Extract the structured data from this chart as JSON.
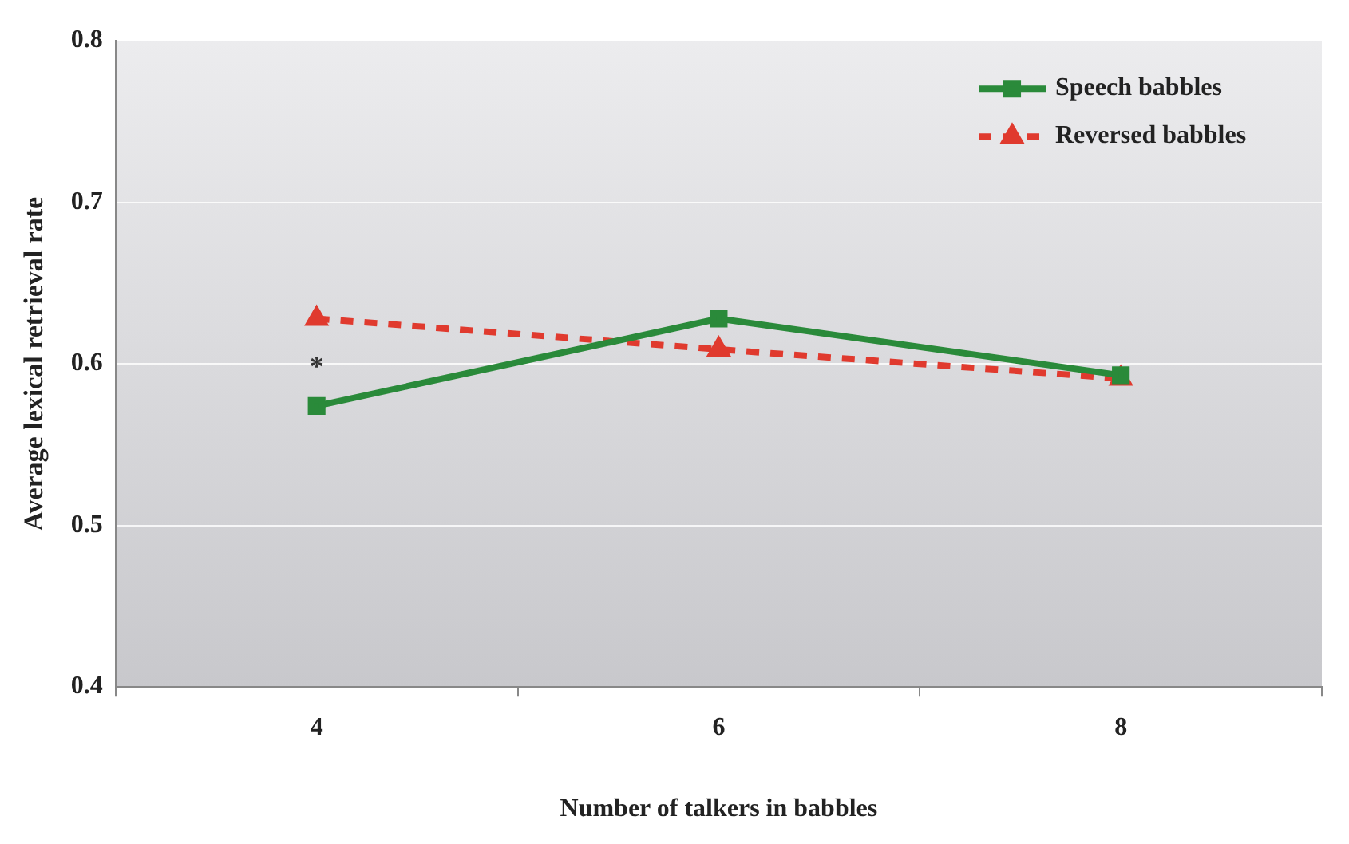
{
  "chart_data": {
    "type": "line",
    "xlabel": "Number of talkers in babbles",
    "ylabel": "Average lexical retrieval rate",
    "categories": [
      "4",
      "6",
      "8"
    ],
    "ylim": [
      0.4,
      0.8
    ],
    "yticks": [
      0.4,
      0.5,
      0.6,
      0.7,
      0.8
    ],
    "grid": "y",
    "legend": "top right",
    "series": [
      {
        "name": "Speech babbles",
        "color": "#2a8a3a",
        "values": [
          0.574,
          0.628,
          0.593
        ],
        "marker": "square",
        "line_style": "solid"
      },
      {
        "name": "Reversed babbles",
        "color": "#e03a2e",
        "values": [
          0.628,
          0.609,
          0.591
        ],
        "marker": "triangle",
        "line_style": "dashed"
      }
    ],
    "annotations": [
      "*"
    ]
  }
}
